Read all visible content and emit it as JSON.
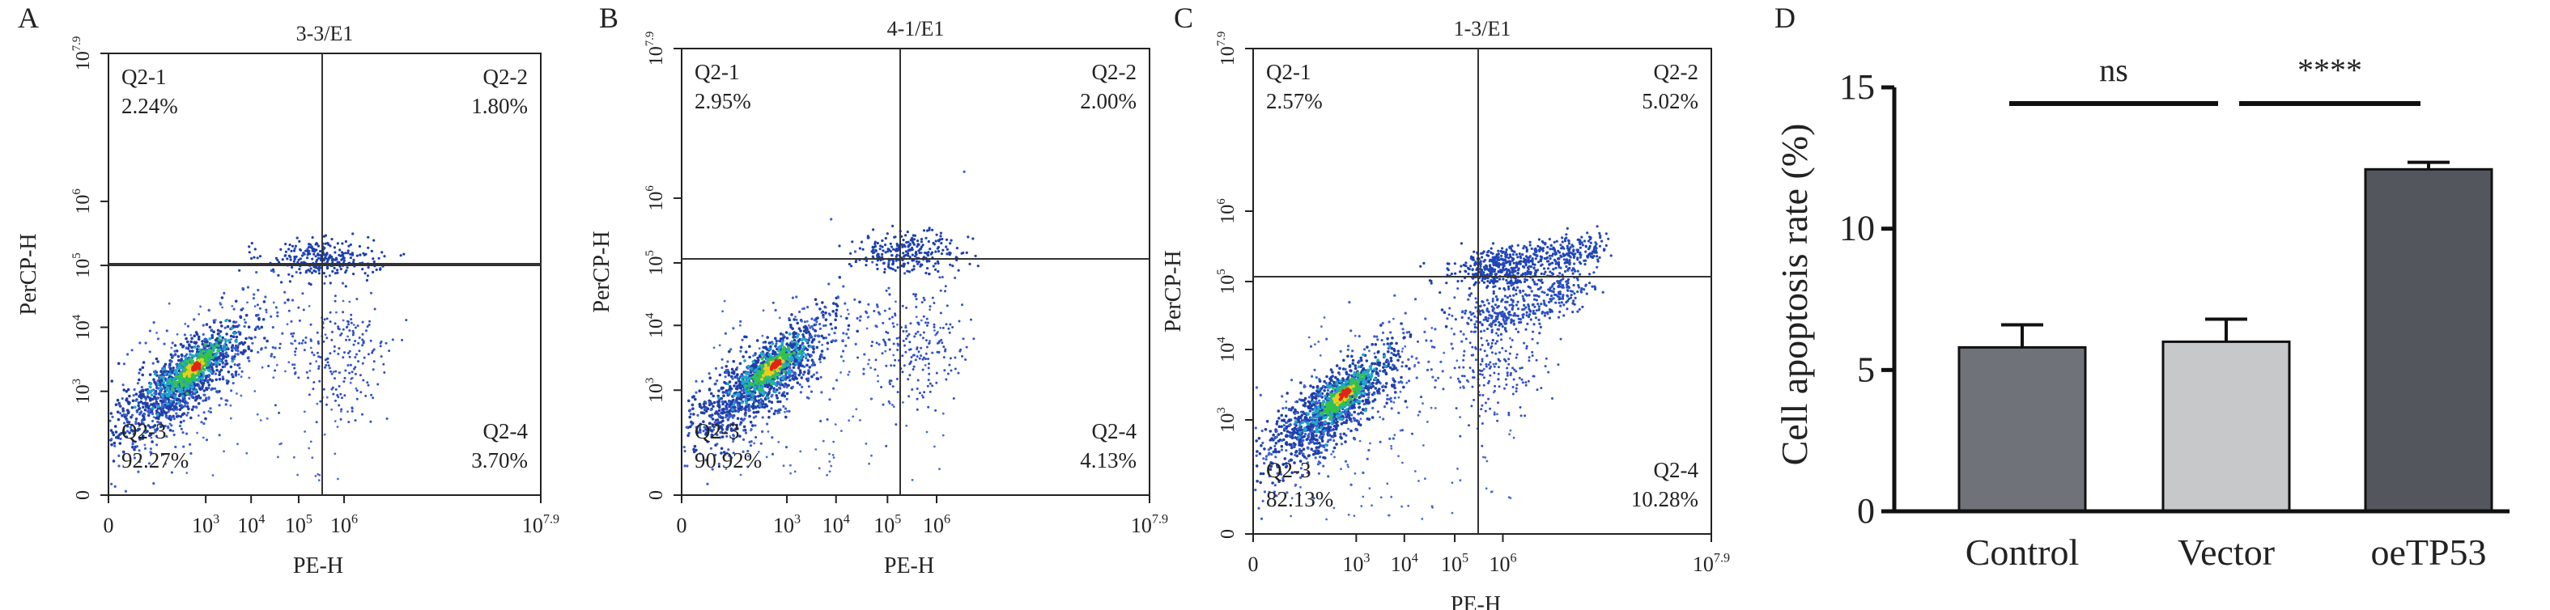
{
  "panels": [
    {
      "letter": "A",
      "title": "3-3/E1",
      "xlabel": "PE-H",
      "ylabel": "PerCP-H",
      "quadrants": [
        {
          "name": "Q2-1",
          "value": "2.24%"
        },
        {
          "name": "Q2-2",
          "value": "1.80%"
        },
        {
          "name": "Q2-3",
          "value": "92.27%"
        },
        {
          "name": "Q2-4",
          "value": "3.70%"
        }
      ]
    },
    {
      "letter": "B",
      "title": "4-1/E1",
      "xlabel": "PE-H",
      "ylabel": "PerCP-H",
      "quadrants": [
        {
          "name": "Q2-1",
          "value": "2.95%"
        },
        {
          "name": "Q2-2",
          "value": "2.00%"
        },
        {
          "name": "Q2-3",
          "value": "90.92%"
        },
        {
          "name": "Q2-4",
          "value": "4.13%"
        }
      ]
    },
    {
      "letter": "C",
      "title": "1-3/E1",
      "xlabel": "PE-H",
      "ylabel": "PerCP-H",
      "quadrants": [
        {
          "name": "Q2-1",
          "value": "2.57%"
        },
        {
          "name": "Q2-2",
          "value": "5.02%"
        },
        {
          "name": "Q2-3",
          "value": "82.13%"
        },
        {
          "name": "Q2-4",
          "value": "10.28%"
        }
      ]
    }
  ],
  "flow_axis": {
    "tick_labels": [
      {
        "base": "0",
        "exp": ""
      },
      {
        "base": "10",
        "exp": "3"
      },
      {
        "base": "10",
        "exp": "4"
      },
      {
        "base": "10",
        "exp": "5"
      },
      {
        "base": "10",
        "exp": "6"
      },
      {
        "base": "10",
        "exp": "7.9"
      }
    ]
  },
  "bar_panel": {
    "letter": "D"
  },
  "chart_data": [
    {
      "type": "scatter",
      "title": "3-3/E1",
      "xlabel": "PE-H",
      "ylabel": "PerCP-H",
      "quadrant_percentages": {
        "Q2-1": 2.24,
        "Q2-2": 1.8,
        "Q2-3": 92.27,
        "Q2-4": 3.7
      }
    },
    {
      "type": "scatter",
      "title": "4-1/E1",
      "xlabel": "PE-H",
      "ylabel": "PerCP-H",
      "quadrant_percentages": {
        "Q2-1": 2.95,
        "Q2-2": 2.0,
        "Q2-3": 90.92,
        "Q2-4": 4.13
      }
    },
    {
      "type": "scatter",
      "title": "1-3/E1",
      "xlabel": "PE-H",
      "ylabel": "PerCP-H",
      "quadrant_percentages": {
        "Q2-1": 2.57,
        "Q2-2": 5.02,
        "Q2-3": 82.13,
        "Q2-4": 10.28
      }
    },
    {
      "type": "bar",
      "title": "",
      "xlabel": "",
      "ylabel": "Cell apoptosis rate (%)",
      "categories": [
        "Control",
        "Vector",
        "oeTP53"
      ],
      "values": [
        5.8,
        6.0,
        12.1
      ],
      "errors": [
        0.8,
        0.8,
        0.25
      ],
      "colors": [
        "#6f7379",
        "#c6c8ca",
        "#53575d"
      ],
      "ylim": [
        0,
        15
      ],
      "yticks": [
        0,
        5,
        10,
        15
      ],
      "significance": [
        {
          "from": 0,
          "to": 1,
          "label": "ns"
        },
        {
          "from": 1,
          "to": 2,
          "label": "****"
        }
      ]
    }
  ]
}
